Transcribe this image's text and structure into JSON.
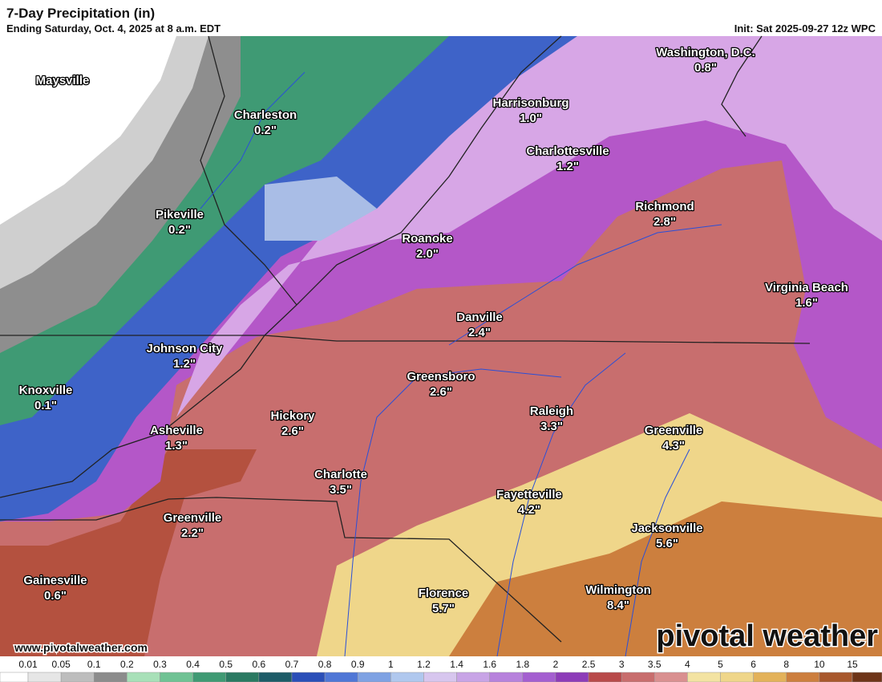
{
  "header": {
    "title": "7-Day Precipitation (in)",
    "subtitle": "Ending Saturday, Oct. 4, 2025 at 8 a.m. EDT",
    "init": "Init: Sat 2025-09-27 12z WPC"
  },
  "cities": [
    {
      "name": "Washington, D.C.",
      "value": "0.8\""
    },
    {
      "name": "Maysville"
    },
    {
      "name": "Harrisonburg",
      "value": "1.0\""
    },
    {
      "name": "Charleston",
      "value": "0.2\""
    },
    {
      "name": "Charlottesville",
      "value": "1.2\""
    },
    {
      "name": "Pikeville",
      "value": "0.2\""
    },
    {
      "name": "Richmond",
      "value": "2.8\""
    },
    {
      "name": "Roanoke",
      "value": "2.0\""
    },
    {
      "name": "Virginia Beach",
      "value": "1.6\""
    },
    {
      "name": "Danville",
      "value": "2.4\""
    },
    {
      "name": "Johnson City",
      "value": "1.2\""
    },
    {
      "name": "Greensboro",
      "value": "2.6\""
    },
    {
      "name": "Knoxville",
      "value": "0.1\""
    },
    {
      "name": "Raleigh",
      "value": "3.3\""
    },
    {
      "name": "Hickory",
      "value": "2.6\""
    },
    {
      "name": "Asheville",
      "value": "1.3\""
    },
    {
      "name": "Greenville",
      "value": "4.3\""
    },
    {
      "name": "Charlotte",
      "value": "3.5\""
    },
    {
      "name": "Fayetteville",
      "value": "4.2\""
    },
    {
      "name": "Greenville",
      "value": "2.2\""
    },
    {
      "name": "Jacksonville",
      "value": "5.6\""
    },
    {
      "name": "Gainesville",
      "value": "0.6\""
    },
    {
      "name": "Wilmington",
      "value": "8.4\""
    },
    {
      "name": "Florence",
      "value": "5.7\""
    }
  ],
  "footer": {
    "website": "www.pivotalweather.com",
    "logo": "pivotal weather"
  },
  "colorbar": {
    "labels": [
      "0.01",
      "0.05",
      "0.1",
      "0.2",
      "0.3",
      "0.4",
      "0.5",
      "0.6",
      "0.7",
      "0.8",
      "0.9",
      "1",
      "1.2",
      "1.4",
      "1.6",
      "1.8",
      "2",
      "2.5",
      "3",
      "3.5",
      "4",
      "5",
      "6",
      "8",
      "10",
      "15"
    ]
  }
}
